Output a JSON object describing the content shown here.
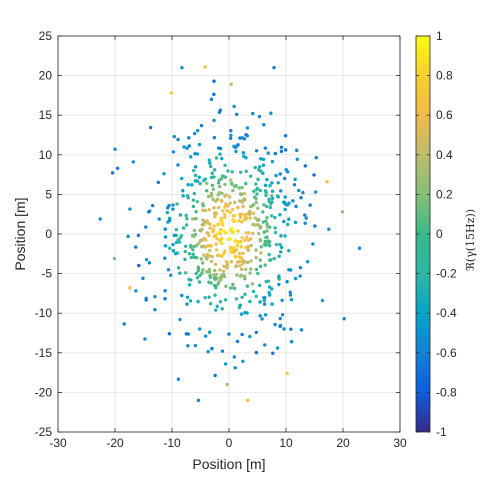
{
  "chart_data": {
    "type": "scatter",
    "xlabel": "Position [m]",
    "ylabel": "Position [m]",
    "colorbar_label": "ℜ(γ(15Hz))",
    "xlim": [
      -30,
      30
    ],
    "ylim": [
      -25,
      25
    ],
    "clim": [
      -1,
      1
    ],
    "xticks": [
      "-30",
      "-20",
      "-10",
      "0",
      "10",
      "20",
      "30"
    ],
    "yticks": [
      "25",
      "20",
      "15",
      "10",
      "5",
      "0",
      "-5",
      "-10",
      "-15",
      "-20",
      "-25"
    ],
    "cticks": [
      "1",
      "0.8",
      "0.6",
      "0.4",
      "0.2",
      "0",
      "-0.2",
      "-0.4",
      "-0.6",
      "-0.8",
      "-1"
    ],
    "grid": true,
    "colormap": "parula",
    "point_color_rule": "value decreases with radial distance from origin, centre ≈ 0.9, edge ≈ -0.6",
    "approx_point_count": 700,
    "points": [
      [
        0.9,
        1.6,
        0.82
      ],
      [
        -1.3,
        -0.6,
        0.84
      ],
      [
        2.0,
        2.1,
        0.72
      ],
      [
        -2.6,
        1.0,
        0.76
      ],
      [
        0.4,
        -2.3,
        0.77
      ],
      [
        3.1,
        -0.4,
        0.7
      ],
      [
        -0.7,
        3.4,
        0.65
      ],
      [
        -3.4,
        -2.8,
        0.55
      ],
      [
        4.3,
        2.6,
        0.52
      ],
      [
        1.2,
        -4.1,
        0.58
      ],
      [
        -4.6,
        3.0,
        0.48
      ],
      [
        5.6,
        -2.4,
        0.44
      ],
      [
        -5.3,
        -1.2,
        0.5
      ],
      [
        2.7,
        5.1,
        0.45
      ],
      [
        -1.8,
        -5.6,
        0.46
      ],
      [
        6.7,
        0.9,
        0.36
      ],
      [
        -6.4,
        1.9,
        0.35
      ],
      [
        0.3,
        6.8,
        0.38
      ],
      [
        4.1,
        -6.3,
        0.22
      ],
      [
        -3.9,
        6.4,
        0.2
      ],
      [
        7.5,
        4.8,
        0.1
      ],
      [
        -7.6,
        -4.9,
        0.05
      ],
      [
        5.2,
        8.1,
        -0.1
      ],
      [
        -6.2,
        8.0,
        -0.15
      ],
      [
        8.8,
        -5.7,
        -0.12
      ],
      [
        -9.1,
        3.8,
        -0.05
      ],
      [
        1.8,
        -9.3,
        -0.05
      ],
      [
        -2.2,
        9.6,
        -0.1
      ],
      [
        10.3,
        1.2,
        -0.25
      ],
      [
        -10.4,
        -1.8,
        -0.2
      ],
      [
        11.6,
        6.9,
        -0.45
      ],
      [
        -11.4,
        7.6,
        -0.48
      ],
      [
        9.4,
        -10.2,
        -0.52
      ],
      [
        -8.6,
        -10.8,
        -0.5
      ],
      [
        3.2,
        12.4,
        -0.55
      ],
      [
        -4.1,
        -12.9,
        -0.52
      ],
      [
        13.8,
        -3.5,
        -0.5
      ],
      [
        -13.9,
        2.9,
        -0.55
      ],
      [
        6.1,
        13.8,
        -0.58
      ],
      [
        -5.9,
        -14.1,
        -0.55
      ],
      [
        15.2,
        5.3,
        -0.55
      ],
      [
        -15.1,
        -5.6,
        -0.57
      ],
      [
        16.4,
        -8.4,
        -0.5
      ],
      [
        -16.8,
        9.1,
        -0.56
      ],
      [
        17.5,
        0.6,
        -0.52
      ],
      [
        -17.7,
        -0.3,
        -0.55
      ],
      [
        0.9,
        16.1,
        -0.5
      ],
      [
        -0.6,
        -16.4,
        -0.45
      ],
      [
        19.9,
        2.8,
        0.25
      ],
      [
        -20.1,
        -3.1,
        0.15
      ],
      [
        22.9,
        -1.8,
        -0.55
      ],
      [
        -22.6,
        1.9,
        -0.55
      ],
      [
        -4.2,
        21.1,
        0.65
      ],
      [
        3.3,
        -21.0,
        0.65
      ],
      [
        -10.1,
        17.8,
        0.7
      ],
      [
        10.2,
        -17.6,
        0.7
      ],
      [
        0.4,
        18.9,
        0.35
      ],
      [
        -0.3,
        -19.0,
        0.3
      ],
      [
        17.2,
        6.6,
        0.65
      ],
      [
        -17.4,
        -6.8,
        0.6
      ],
      [
        20.2,
        -10.7,
        -0.55
      ],
      [
        -20.0,
        10.7,
        -0.55
      ],
      [
        8.5,
        -14.4,
        -0.45
      ],
      [
        -9.6,
        12.3,
        -0.5
      ],
      [
        12.7,
        -12.1,
        -0.55
      ]
    ]
  }
}
